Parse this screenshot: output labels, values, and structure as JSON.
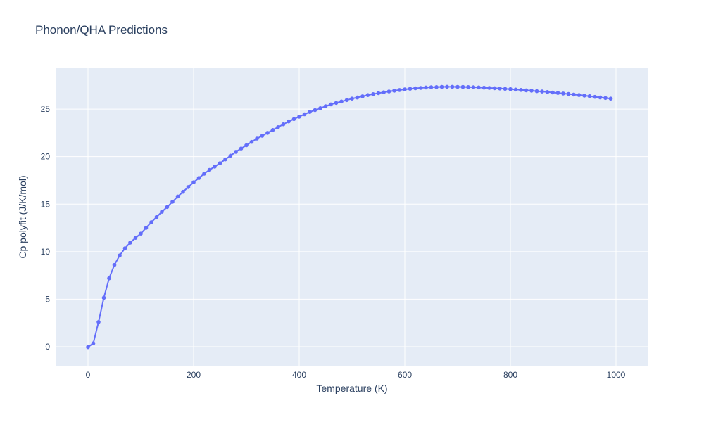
{
  "colors": {
    "line": "#636efa",
    "plot_bg": "#e5ecf6",
    "grid": "#ffffff",
    "text": "#2a3f5f"
  },
  "chart_data": {
    "type": "line",
    "mode": "lines+markers",
    "title": "Phonon/QHA Predictions",
    "xlabel": "Temperature (K)",
    "ylabel": "Cp polyfit (J/K/mol)",
    "x_ticks": [
      0,
      200,
      400,
      600,
      800,
      1000
    ],
    "y_ticks": [
      0,
      5,
      10,
      15,
      20,
      25
    ],
    "xlim": [
      -60,
      1060
    ],
    "ylim": [
      -2,
      29.3
    ],
    "grid": true,
    "legend": false,
    "series": [
      {
        "name": "Cp polyfit",
        "x": [
          0,
          10,
          20,
          30,
          40,
          50,
          60,
          70,
          80,
          90,
          100,
          110,
          120,
          130,
          140,
          150,
          160,
          170,
          180,
          190,
          200,
          210,
          220,
          230,
          240,
          250,
          260,
          270,
          280,
          290,
          300,
          310,
          320,
          330,
          340,
          350,
          360,
          370,
          380,
          390,
          400,
          410,
          420,
          430,
          440,
          450,
          460,
          470,
          480,
          490,
          500,
          510,
          520,
          530,
          540,
          550,
          560,
          570,
          580,
          590,
          600,
          610,
          620,
          630,
          640,
          650,
          660,
          670,
          680,
          690,
          700,
          710,
          720,
          730,
          740,
          750,
          760,
          770,
          780,
          790,
          800,
          810,
          820,
          830,
          840,
          850,
          860,
          870,
          880,
          890,
          900,
          910,
          920,
          930,
          940,
          950,
          960,
          970,
          980,
          990
        ],
        "y": [
          -0.05,
          0.35,
          2.6,
          5.15,
          7.2,
          8.6,
          9.6,
          10.35,
          10.95,
          11.45,
          11.9,
          12.5,
          13.1,
          13.65,
          14.2,
          14.7,
          15.25,
          15.8,
          16.3,
          16.8,
          17.3,
          17.75,
          18.2,
          18.6,
          18.95,
          19.3,
          19.7,
          20.1,
          20.5,
          20.85,
          21.2,
          21.55,
          21.9,
          22.2,
          22.5,
          22.8,
          23.1,
          23.4,
          23.7,
          23.95,
          24.2,
          24.45,
          24.7,
          24.9,
          25.1,
          25.3,
          25.5,
          25.65,
          25.8,
          25.95,
          26.1,
          26.22,
          26.35,
          26.47,
          26.58,
          26.68,
          26.77,
          26.86,
          26.94,
          27.01,
          27.08,
          27.14,
          27.19,
          27.23,
          27.27,
          27.3,
          27.32,
          27.34,
          27.35,
          27.35,
          27.34,
          27.33,
          27.32,
          27.3,
          27.28,
          27.25,
          27.23,
          27.2,
          27.17,
          27.13,
          27.1,
          27.06,
          27.02,
          26.98,
          26.94,
          26.89,
          26.85,
          26.8,
          26.75,
          26.7,
          26.64,
          26.59,
          26.53,
          26.48,
          26.42,
          26.36,
          26.29,
          26.23,
          26.17,
          26.1
        ]
      }
    ]
  }
}
